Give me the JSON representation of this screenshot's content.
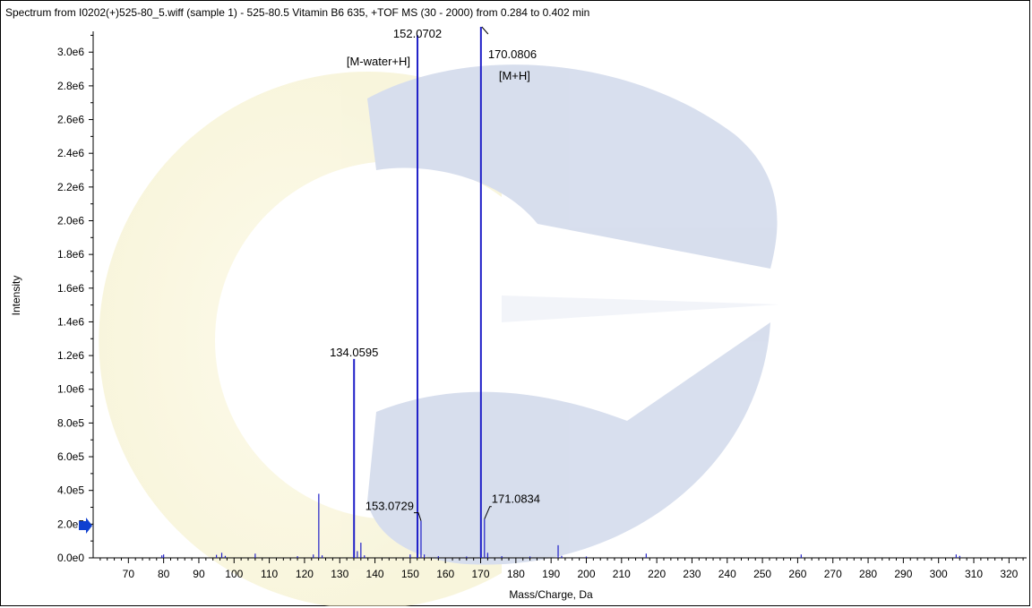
{
  "chart_data": {
    "type": "bar",
    "title": "Spectrum from I0202(+)525-80_5.wiff (sample 1) - 525-80.5 Vitamin B6 635, +TOF MS (30 - 2000) from 0.284 to 0.402 min",
    "xlabel": "Mass/Charge, Da",
    "ylabel": "Intensity",
    "xlim": [
      60,
      325
    ],
    "ylim": [
      0,
      3150000.0
    ],
    "x_ticks": [
      70,
      80,
      90,
      100,
      110,
      120,
      130,
      140,
      150,
      160,
      170,
      180,
      190,
      200,
      210,
      220,
      230,
      240,
      250,
      260,
      270,
      280,
      290,
      300,
      310,
      320
    ],
    "y_ticks": [
      {
        "value": 0,
        "label": "0.0e0"
      },
      {
        "value": 200000,
        "label": "2.0e5"
      },
      {
        "value": 400000,
        "label": "4.0e5"
      },
      {
        "value": 600000,
        "label": "6.0e5"
      },
      {
        "value": 800000,
        "label": "8.0e5"
      },
      {
        "value": 1000000,
        "label": "1.0e6"
      },
      {
        "value": 1200000,
        "label": "1.2e6"
      },
      {
        "value": 1400000,
        "label": "1.4e6"
      },
      {
        "value": 1600000,
        "label": "1.6e6"
      },
      {
        "value": 1800000,
        "label": "1.8e6"
      },
      {
        "value": 2000000,
        "label": "2.0e6"
      },
      {
        "value": 2200000,
        "label": "2.2e6"
      },
      {
        "value": 2400000,
        "label": "2.4e6"
      },
      {
        "value": 2600000,
        "label": "2.6e6"
      },
      {
        "value": 2800000,
        "label": "2.8e6"
      },
      {
        "value": 3000000,
        "label": "3.0e6"
      }
    ],
    "peaks": [
      {
        "mz": 79.5,
        "intensity": 15000
      },
      {
        "mz": 80.0,
        "intensity": 20000
      },
      {
        "mz": 95.0,
        "intensity": 18000
      },
      {
        "mz": 96.5,
        "intensity": 30000
      },
      {
        "mz": 97.5,
        "intensity": 12000
      },
      {
        "mz": 106.0,
        "intensity": 25000
      },
      {
        "mz": 118.0,
        "intensity": 10000
      },
      {
        "mz": 122.5,
        "intensity": 20000
      },
      {
        "mz": 124.05,
        "intensity": 380000
      },
      {
        "mz": 125.0,
        "intensity": 15000
      },
      {
        "mz": 134.0595,
        "intensity": 1180000
      },
      {
        "mz": 135.0,
        "intensity": 40000
      },
      {
        "mz": 136.0,
        "intensity": 90000
      },
      {
        "mz": 137.0,
        "intensity": 15000
      },
      {
        "mz": 150.0,
        "intensity": 20000
      },
      {
        "mz": 152.0702,
        "intensity": 3100000
      },
      {
        "mz": 153.0729,
        "intensity": 220000
      },
      {
        "mz": 154.0,
        "intensity": 20000
      },
      {
        "mz": 158.0,
        "intensity": 10000
      },
      {
        "mz": 166.0,
        "intensity": 8000
      },
      {
        "mz": 170.0806,
        "intensity": 3150000
      },
      {
        "mz": 171.0834,
        "intensity": 230000
      },
      {
        "mz": 172.0,
        "intensity": 30000
      },
      {
        "mz": 176.0,
        "intensity": 10000
      },
      {
        "mz": 184.0,
        "intensity": 8000
      },
      {
        "mz": 192.0,
        "intensity": 75000
      },
      {
        "mz": 193.0,
        "intensity": 12000
      },
      {
        "mz": 200.0,
        "intensity": 8000
      },
      {
        "mz": 217.0,
        "intensity": 25000
      },
      {
        "mz": 261.0,
        "intensity": 20000
      },
      {
        "mz": 305.0,
        "intensity": 20000
      },
      {
        "mz": 306.0,
        "intensity": 12000
      }
    ],
    "labels": [
      {
        "mz": 152.0702,
        "intensity": 3100000,
        "text": "152.0702"
      },
      {
        "mz": 170.0806,
        "intensity": 3150000,
        "text": "170.0806"
      },
      {
        "mz": 134.0595,
        "intensity": 1180000,
        "text": "134.0595"
      },
      {
        "mz": 153.0729,
        "intensity": 220000,
        "text": "153.0729"
      },
      {
        "mz": 171.0834,
        "intensity": 230000,
        "text": "171.0834"
      }
    ],
    "annotations": [
      {
        "text": "[M-water+H]",
        "near_mz": 152.0702
      },
      {
        "text": "[M+H]",
        "near_mz": 170.0806
      }
    ],
    "colors": {
      "peaks": "#2020c8",
      "axes": "#000000",
      "marker": "#1040d0",
      "watermark_blue": "#b8c4e0",
      "watermark_yellow": "#f4efc0"
    }
  }
}
